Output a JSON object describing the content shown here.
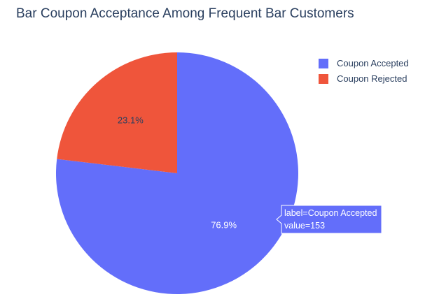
{
  "chart_data": {
    "type": "pie",
    "title": "Bar Coupon Acceptance Among Frequent Bar Customers",
    "labels": [
      "Coupon Accepted",
      "Coupon Rejected"
    ],
    "values": [
      153,
      46
    ],
    "percent_labels": [
      "76.9%",
      "23.1%"
    ],
    "colors": [
      "#636efa",
      "#ef553b"
    ],
    "legend_placement": "top-right",
    "hover": {
      "label_line": "label=Coupon Accepted",
      "value_line": "value=153"
    }
  }
}
